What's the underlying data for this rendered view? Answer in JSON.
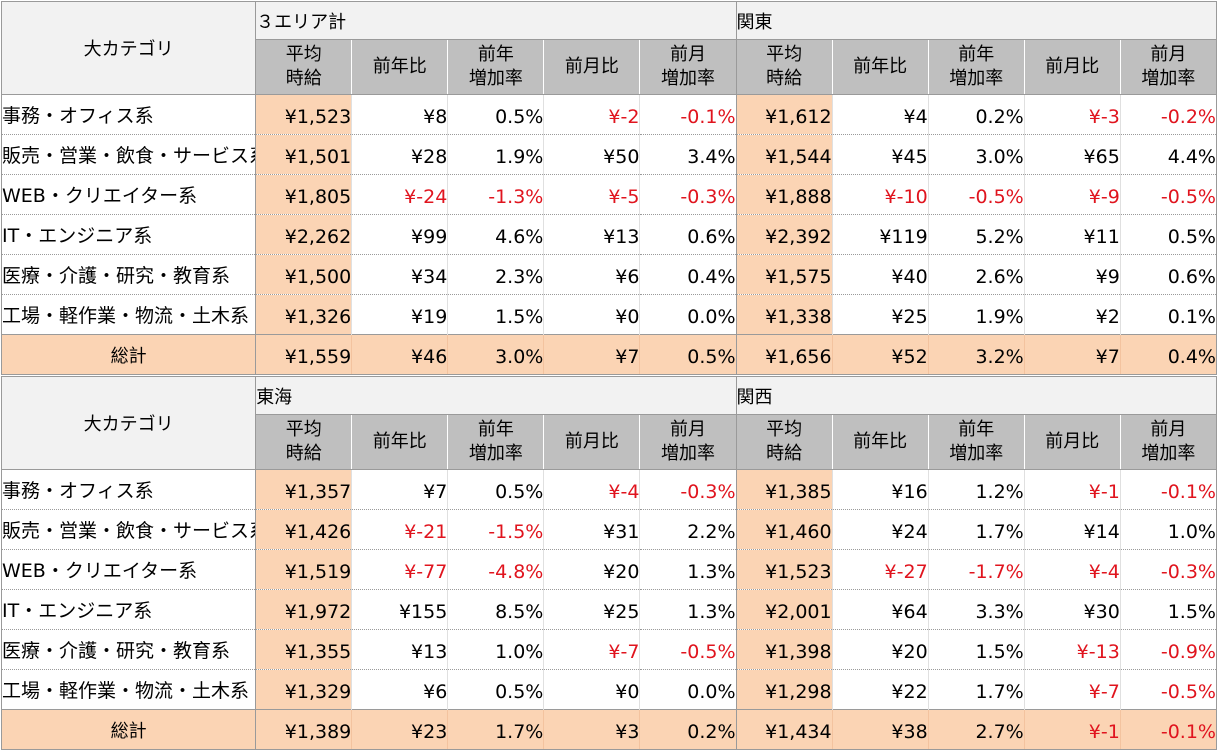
{
  "category_header": "大カテゴリ",
  "sub_headers": {
    "avg": "平均\n時給",
    "yoy": "前年比",
    "yoy_rate": "前年\n増加率",
    "mom": "前月比",
    "mom_rate": "前月\n増加率"
  },
  "row_labels": [
    "事務・オフィス系",
    "販売・営業・飲食・サービス系",
    "WEB・クリエイター系",
    "IT・エンジニア系",
    "医療・介護・研究・教育系",
    "工場・軽作業・物流・土木系"
  ],
  "total_label": "総計",
  "colors": {
    "negative": "#e0141e",
    "highlight": "#fbd4b4",
    "header": "#bfbfbf"
  },
  "tables": [
    {
      "areas": [
        {
          "name": "３エリア計",
          "rows": [
            [
              "¥1,523",
              "¥8",
              "0.5%",
              "¥-2",
              "-0.1%"
            ],
            [
              "¥1,501",
              "¥28",
              "1.9%",
              "¥50",
              "3.4%"
            ],
            [
              "¥1,805",
              "¥-24",
              "-1.3%",
              "¥-5",
              "-0.3%"
            ],
            [
              "¥2,262",
              "¥99",
              "4.6%",
              "¥13",
              "0.6%"
            ],
            [
              "¥1,500",
              "¥34",
              "2.3%",
              "¥6",
              "0.4%"
            ],
            [
              "¥1,326",
              "¥19",
              "1.5%",
              "¥0",
              "0.0%"
            ]
          ],
          "total": [
            "¥1,559",
            "¥46",
            "3.0%",
            "¥7",
            "0.5%"
          ]
        },
        {
          "name": "関東",
          "rows": [
            [
              "¥1,612",
              "¥4",
              "0.2%",
              "¥-3",
              "-0.2%"
            ],
            [
              "¥1,544",
              "¥45",
              "3.0%",
              "¥65",
              "4.4%"
            ],
            [
              "¥1,888",
              "¥-10",
              "-0.5%",
              "¥-9",
              "-0.5%"
            ],
            [
              "¥2,392",
              "¥119",
              "5.2%",
              "¥11",
              "0.5%"
            ],
            [
              "¥1,575",
              "¥40",
              "2.6%",
              "¥9",
              "0.6%"
            ],
            [
              "¥1,338",
              "¥25",
              "1.9%",
              "¥2",
              "0.1%"
            ]
          ],
          "total": [
            "¥1,656",
            "¥52",
            "3.2%",
            "¥7",
            "0.4%"
          ]
        }
      ]
    },
    {
      "areas": [
        {
          "name": "東海",
          "rows": [
            [
              "¥1,357",
              "¥7",
              "0.5%",
              "¥-4",
              "-0.3%"
            ],
            [
              "¥1,426",
              "¥-21",
              "-1.5%",
              "¥31",
              "2.2%"
            ],
            [
              "¥1,519",
              "¥-77",
              "-4.8%",
              "¥20",
              "1.3%"
            ],
            [
              "¥1,972",
              "¥155",
              "8.5%",
              "¥25",
              "1.3%"
            ],
            [
              "¥1,355",
              "¥13",
              "1.0%",
              "¥-7",
              "-0.5%"
            ],
            [
              "¥1,329",
              "¥6",
              "0.5%",
              "¥0",
              "0.0%"
            ]
          ],
          "total": [
            "¥1,389",
            "¥23",
            "1.7%",
            "¥3",
            "0.2%"
          ]
        },
        {
          "name": "関西",
          "rows": [
            [
              "¥1,385",
              "¥16",
              "1.2%",
              "¥-1",
              "-0.1%"
            ],
            [
              "¥1,460",
              "¥24",
              "1.7%",
              "¥14",
              "1.0%"
            ],
            [
              "¥1,523",
              "¥-27",
              "-1.7%",
              "¥-4",
              "-0.3%"
            ],
            [
              "¥2,001",
              "¥64",
              "3.3%",
              "¥30",
              "1.5%"
            ],
            [
              "¥1,398",
              "¥20",
              "1.5%",
              "¥-13",
              "-0.9%"
            ],
            [
              "¥1,298",
              "¥22",
              "1.7%",
              "¥-7",
              "-0.5%"
            ]
          ],
          "total": [
            "¥1,434",
            "¥38",
            "2.7%",
            "¥-1",
            "-0.1%"
          ]
        }
      ]
    }
  ]
}
